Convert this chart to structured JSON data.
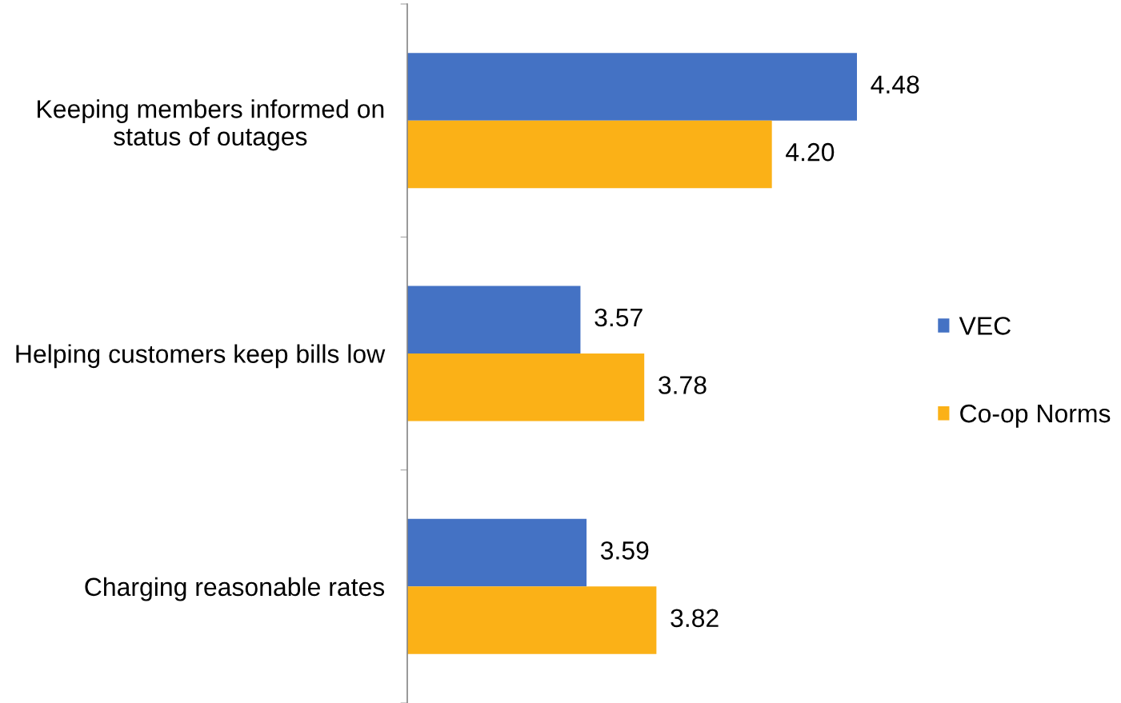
{
  "chart_data": {
    "type": "bar",
    "orientation": "horizontal",
    "categories": [
      "Keeping members informed on\nstatus of outages",
      "Helping customers keep bills low",
      "Charging reasonable rates"
    ],
    "series": [
      {
        "name": "VEC",
        "color": "#4472c4",
        "values": [
          4.48,
          3.57,
          3.59
        ],
        "value_labels": [
          "4.48",
          "3.57",
          "3.59"
        ]
      },
      {
        "name": "Co-op Norms",
        "color": "#fbb117",
        "values": [
          4.2,
          3.78,
          3.82
        ],
        "value_labels": [
          "4.20",
          "3.78",
          "3.82"
        ]
      }
    ],
    "xlim": [
      3,
      4.48
    ],
    "tick_labels": "y",
    "legend": "right"
  }
}
